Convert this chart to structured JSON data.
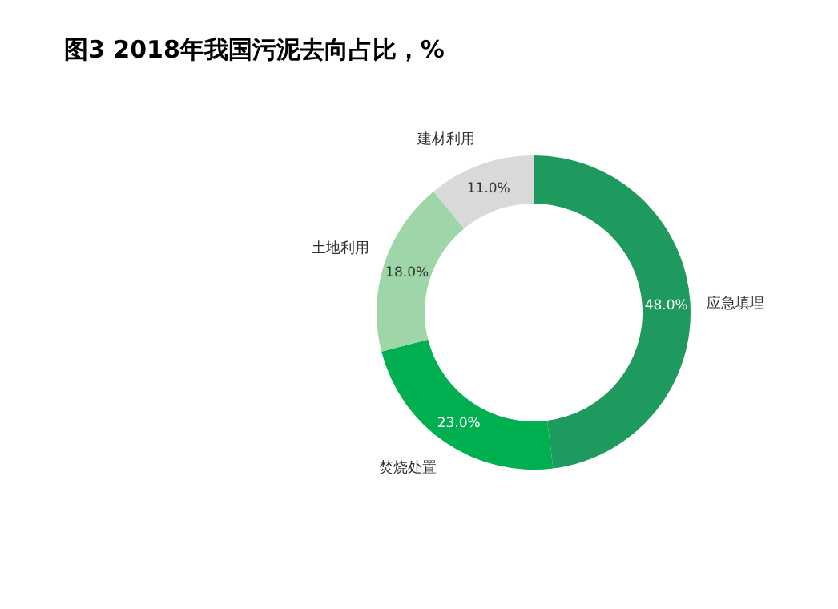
{
  "chart_data": {
    "type": "donut",
    "title": "图3  2018年我国污泥去向占比，%",
    "categories": [
      "应急填埋",
      "焚烧处置",
      "土地利用",
      "建材利用"
    ],
    "values": [
      48,
      23,
      18,
      11
    ],
    "colors": [
      "#1e9a5e",
      "#00b050",
      "#9fd6a9",
      "#d9d9d9"
    ],
    "value_labels": [
      "48.0%",
      "23.0%",
      "18.0%",
      "11.0%"
    ]
  }
}
